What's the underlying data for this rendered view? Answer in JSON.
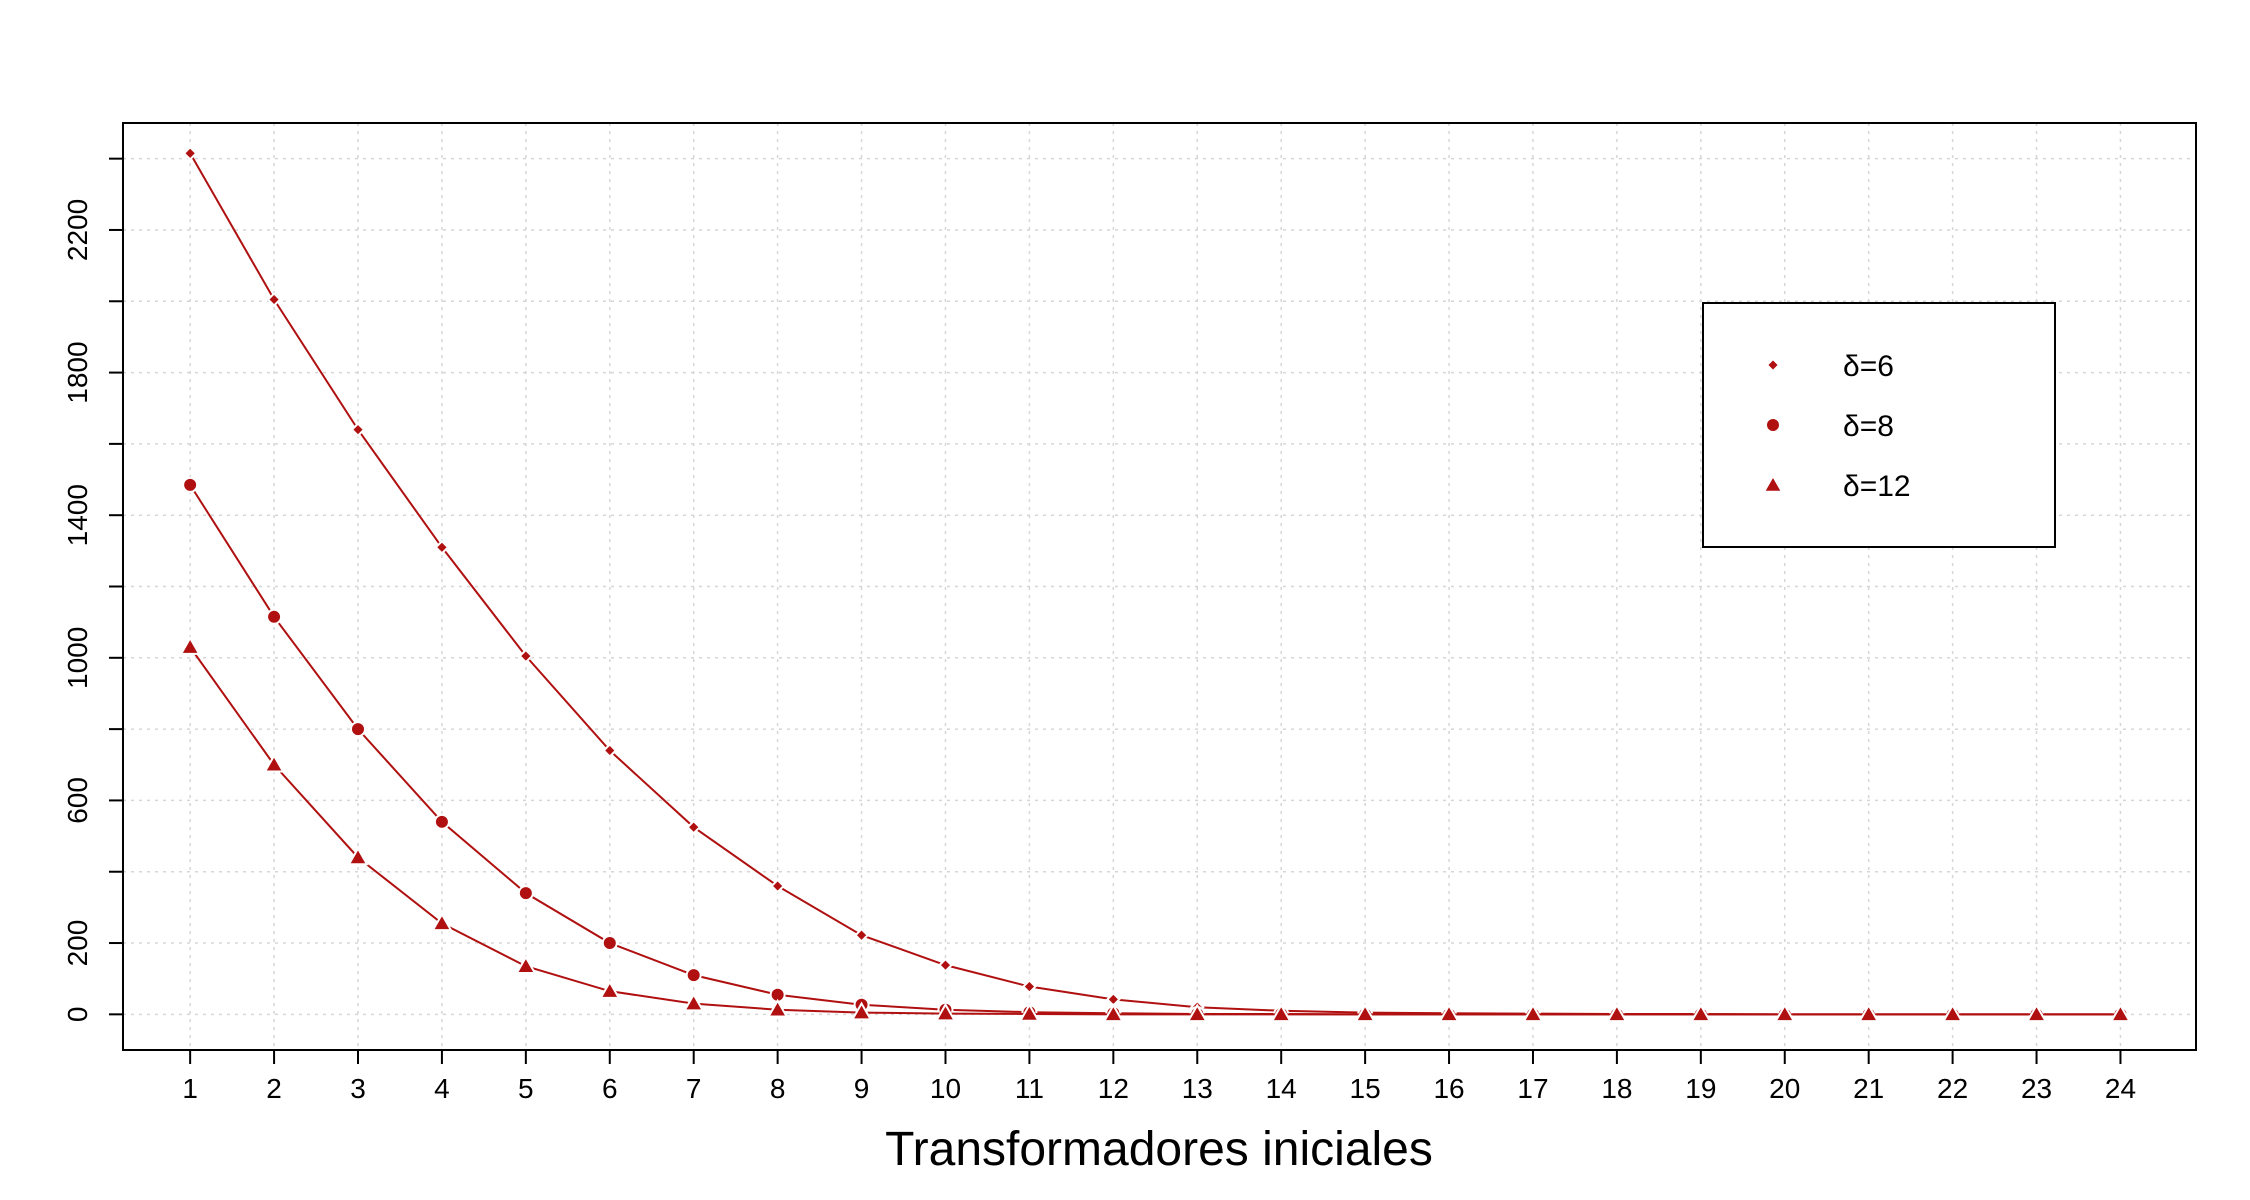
{
  "chart_data": {
    "type": "line",
    "title": "",
    "xlabel": "Transformadores iniciales",
    "ylabel": "",
    "x": [
      1,
      2,
      3,
      4,
      5,
      6,
      7,
      8,
      9,
      10,
      11,
      12,
      13,
      14,
      15,
      16,
      17,
      18,
      19,
      20,
      21,
      22,
      23,
      24
    ],
    "xticks": [
      "1",
      "2",
      "3",
      "4",
      "5",
      "6",
      "7",
      "8",
      "9",
      "10",
      "11",
      "12",
      "13",
      "14",
      "15",
      "16",
      "17",
      "18",
      "19",
      "20",
      "21",
      "22",
      "23",
      "24"
    ],
    "yticks": [
      0,
      200,
      600,
      1000,
      1400,
      1800,
      2200
    ],
    "ylim": [
      -100,
      2500
    ],
    "xlim": [
      0.2,
      24.9
    ],
    "grid": true,
    "legend_position": "top-right",
    "color": "#b01010",
    "series": [
      {
        "name": "δ=6",
        "marker": "diamond",
        "values": [
          2415,
          2005,
          1640,
          1310,
          1005,
          740,
          525,
          360,
          222,
          138,
          78,
          42,
          20,
          10,
          5,
          3,
          2,
          1,
          1,
          0,
          0,
          0,
          0,
          0
        ]
      },
      {
        "name": "δ=8",
        "marker": "circle",
        "values": [
          1485,
          1115,
          800,
          540,
          340,
          200,
          110,
          55,
          27,
          13,
          6,
          3,
          1,
          1,
          0,
          0,
          0,
          0,
          0,
          0,
          0,
          0,
          0,
          0
        ]
      },
      {
        "name": "δ=12",
        "marker": "triangle",
        "values": [
          1030,
          700,
          440,
          255,
          135,
          65,
          30,
          13,
          5,
          2,
          1,
          0,
          0,
          0,
          0,
          0,
          0,
          0,
          0,
          0,
          0,
          0,
          0,
          0
        ]
      }
    ]
  }
}
